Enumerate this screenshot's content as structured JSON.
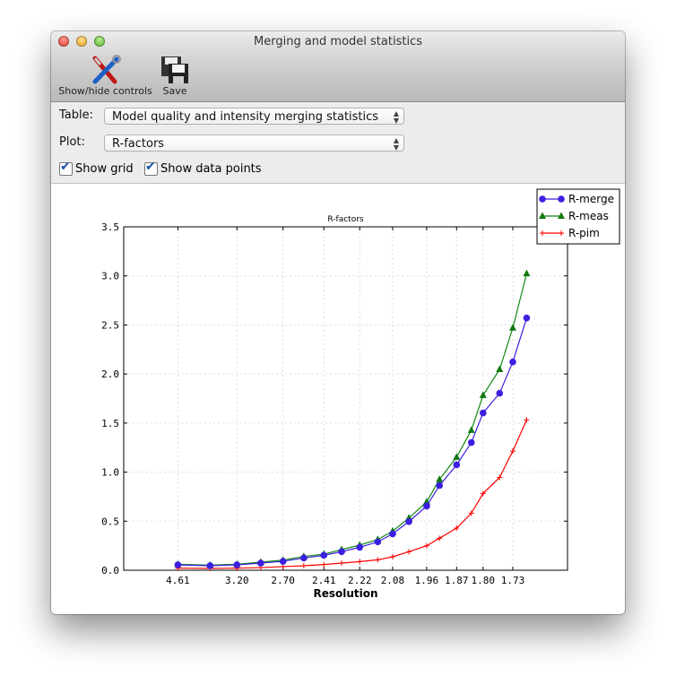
{
  "window": {
    "title": "Merging and model statistics"
  },
  "toolbar": {
    "show_hide_label": "Show/hide controls",
    "save_label": "Save"
  },
  "controls": {
    "table_label": "Table:",
    "table_value": "Model quality and intensity merging statistics",
    "plot_label": "Plot:",
    "plot_value": "R-factors",
    "show_grid_label": "Show grid",
    "show_grid": true,
    "show_points_label": "Show data points",
    "show_points": true
  },
  "chart_data": {
    "type": "line",
    "title": "R-factors",
    "xlabel": "Resolution",
    "ylabel": "",
    "xscale": "inverse-square resolution (1/d^2), decreasing d to the right",
    "xlim": [
      40,
      1.62
    ],
    "ylim": [
      0,
      3.5
    ],
    "yticks": [
      "0.0",
      "0.5",
      "1.0",
      "1.5",
      "2.0",
      "2.5",
      "3.0",
      "3.5"
    ],
    "xticks": [
      "4.61",
      "3.20",
      "2.70",
      "2.41",
      "2.22",
      "2.08",
      "1.96",
      "1.87",
      "1.80",
      "1.73"
    ],
    "grid": true,
    "legend": "top-right",
    "x": [
      4.61,
      3.66,
      3.2,
      2.91,
      2.7,
      2.54,
      2.41,
      2.31,
      2.22,
      2.14,
      2.08,
      2.02,
      1.96,
      1.92,
      1.87,
      1.83,
      1.8,
      1.76,
      1.73,
      1.7
    ],
    "series": [
      {
        "name": "R-merge",
        "color": "#3b1fe0",
        "marker": "circle",
        "values": [
          0.055,
          0.046,
          0.055,
          0.073,
          0.091,
          0.125,
          0.152,
          0.189,
          0.234,
          0.289,
          0.371,
          0.496,
          0.654,
          0.864,
          1.074,
          1.302,
          1.603,
          1.804,
          2.123,
          2.571
        ]
      },
      {
        "name": "R-meas",
        "color": "#118811",
        "marker": "triangle",
        "values": [
          0.061,
          0.052,
          0.061,
          0.082,
          0.103,
          0.14,
          0.164,
          0.21,
          0.256,
          0.313,
          0.399,
          0.532,
          0.697,
          0.925,
          1.153,
          1.427,
          1.783,
          2.047,
          2.47,
          3.024
        ]
      },
      {
        "name": "R-pim",
        "color": "#ff0000",
        "marker": "plus",
        "values": [
          0.021,
          0.018,
          0.021,
          0.027,
          0.037,
          0.046,
          0.058,
          0.073,
          0.088,
          0.106,
          0.137,
          0.189,
          0.249,
          0.326,
          0.429,
          0.581,
          0.782,
          0.946,
          1.214,
          1.533
        ]
      }
    ]
  }
}
